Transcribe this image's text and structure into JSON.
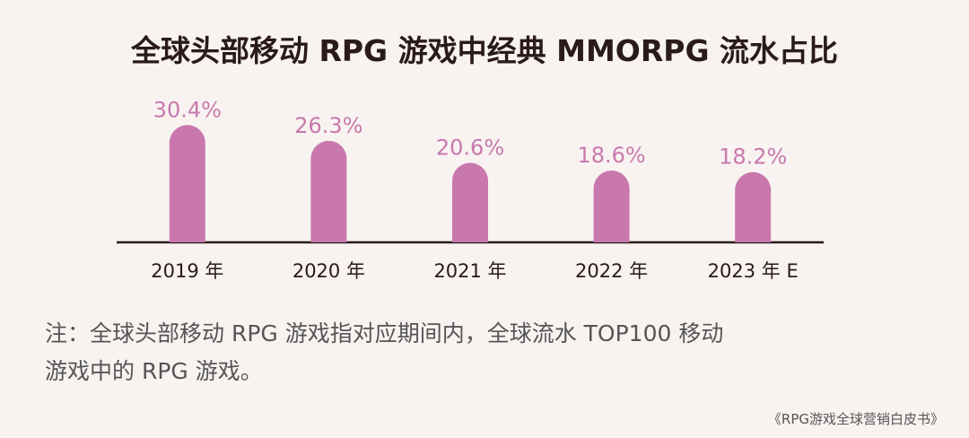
{
  "chart_data": {
    "type": "bar",
    "title": "全球头部移动 RPG 游戏中经典 MMORPG 流水占比",
    "categories": [
      "2019 年",
      "2020 年",
      "2021 年",
      "2022 年",
      "2023 年 E"
    ],
    "values": [
      30.4,
      26.3,
      20.6,
      18.6,
      18.2
    ],
    "value_labels": [
      "30.4%",
      "26.3%",
      "20.6%",
      "18.6%",
      "18.2%"
    ],
    "color": "#c978ad",
    "note": [
      "注：全球头部移动 RPG 游戏指对应期间内，全球流水 TOP100 移动",
      "游戏中的 RPG 游戏。"
    ],
    "source": "《RPG游戏全球营销白皮书》"
  }
}
